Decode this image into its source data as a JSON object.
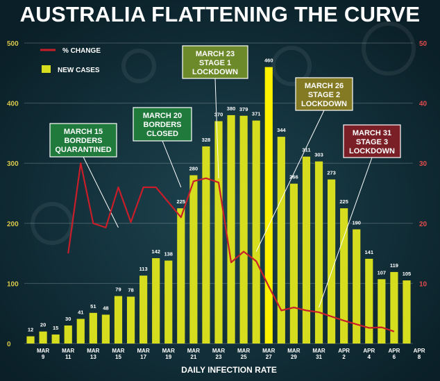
{
  "title": "AUSTRALIA FLATTENING THE CURVE",
  "colors": {
    "background": "#0f2a33",
    "bars": "#d6dc1e",
    "bar_highlight": "#fff200",
    "line": "#c81e2a",
    "left_axis": "#d9c84a",
    "right_axis": "#e34b4b"
  },
  "chart_data": {
    "type": "bar",
    "title": "AUSTRALIA FLATTENING THE CURVE",
    "xlabel": "DAILY INFECTION RATE",
    "ylabel": "",
    "ylim": [
      0,
      500
    ],
    "y2lim": [
      0,
      50
    ],
    "yticks": [
      "0",
      "100",
      "200",
      "300",
      "400",
      "500"
    ],
    "y2ticks": [
      "10",
      "20",
      "30",
      "40",
      "50"
    ],
    "grid": true,
    "legend_position": "top-left",
    "x_tick_labels": [
      {
        "index": 1,
        "top": "MAR",
        "bottom": "9"
      },
      {
        "index": 3,
        "top": "MAR",
        "bottom": "11"
      },
      {
        "index": 5,
        "top": "MAR",
        "bottom": "13"
      },
      {
        "index": 7,
        "top": "MAR",
        "bottom": "15"
      },
      {
        "index": 9,
        "top": "MAR",
        "bottom": "17"
      },
      {
        "index": 11,
        "top": "MAR",
        "bottom": "19"
      },
      {
        "index": 13,
        "top": "MAR",
        "bottom": "21"
      },
      {
        "index": 15,
        "top": "MAR",
        "bottom": "23"
      },
      {
        "index": 17,
        "top": "MAR",
        "bottom": "25"
      },
      {
        "index": 19,
        "top": "MAR",
        "bottom": "27"
      },
      {
        "index": 21,
        "top": "MAR",
        "bottom": "29"
      },
      {
        "index": 23,
        "top": "MAR",
        "bottom": "31"
      },
      {
        "index": 25,
        "top": "APR",
        "bottom": "2"
      },
      {
        "index": 27,
        "top": "APR",
        "bottom": "4"
      },
      {
        "index": 29,
        "top": "APR",
        "bottom": "6"
      },
      {
        "index": 31,
        "top": "APR",
        "bottom": "8"
      }
    ],
    "series": [
      {
        "name": "NEW CASES",
        "kind": "bar",
        "values": [
          12,
          20,
          15,
          30,
          41,
          51,
          48,
          79,
          78,
          113,
          142,
          138,
          225,
          280,
          328,
          370,
          380,
          379,
          371,
          460,
          344,
          266,
          311,
          303,
          273,
          225,
          190,
          141,
          107,
          119,
          105
        ],
        "labels": [
          "12",
          "20",
          "15",
          "30",
          "41",
          "51",
          "48",
          "79",
          "78",
          "113",
          "142",
          "138",
          "225",
          "280",
          "328",
          "370",
          "380",
          "379",
          "371",
          "460",
          "344",
          "266",
          "311",
          "303",
          "273",
          "225",
          "190",
          "141",
          "107",
          "119",
          "105"
        ]
      },
      {
        "name": "% CHANGE",
        "kind": "line",
        "axis": "right",
        "start_index": 3,
        "values": [
          15,
          30,
          20,
          19.3,
          26,
          20.2,
          26,
          26,
          23.5,
          21,
          27,
          27.5,
          26.8,
          13.5,
          15.3,
          13.7,
          9.5,
          5.5,
          6,
          5.5,
          5.2,
          4.5,
          3.8,
          3.2,
          2.6,
          2.7,
          2
        ]
      }
    ],
    "annotations": [
      {
        "lines": [
          "MARCH 15",
          "BORDERS",
          "QUARANTINED"
        ],
        "bg": "#1f7a3c",
        "fg": "#ffffff",
        "point_index": 7,
        "point_value": 19.3
      },
      {
        "lines": [
          "MARCH 20",
          "BORDERS",
          "CLOSED"
        ],
        "bg": "#1f7a3c",
        "fg": "#ffffff",
        "point_index": 12,
        "point_value": 26
      },
      {
        "lines": [
          "MARCH 23",
          "STAGE 1",
          "LOCKDOWN"
        ],
        "bg": "#6d8a2a",
        "fg": "#ffffff",
        "point_index": 15,
        "point_value": 27.5
      },
      {
        "lines": [
          "MARCH 26",
          "STAGE 2",
          "LOCKDOWN"
        ],
        "bg": "#857a24",
        "fg": "#ffffff",
        "point_index": 18,
        "point_value": 15.3
      },
      {
        "lines": [
          "MARCH 31",
          "STAGE 3",
          "LOCKDOWN"
        ],
        "bg": "#7a1f26",
        "fg": "#ffffff",
        "point_index": 23,
        "point_value": 6
      }
    ]
  }
}
